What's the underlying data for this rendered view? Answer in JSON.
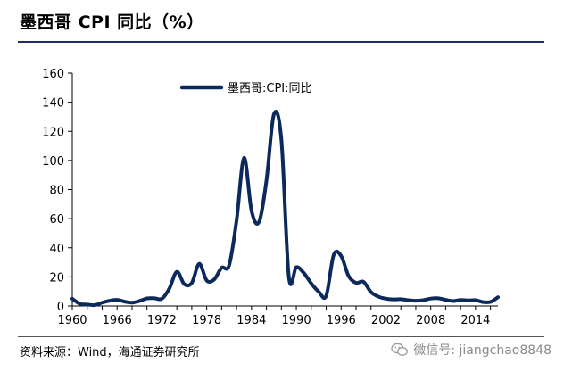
{
  "header": {
    "title": "墨西哥 CPI 同比（%）"
  },
  "footer": {
    "source": "资料来源：Wind，海通证券研究所",
    "watermark": "微信号: jiangchao8848",
    "watermark_icon": "wechat-icon"
  },
  "colors": {
    "line": "#0b2a5b",
    "rule": "#1f2f5a",
    "text": "#000000"
  },
  "chart_data": {
    "type": "line",
    "title": "墨西哥 CPI 同比（%）",
    "xlabel": "",
    "ylabel": "",
    "ylim": [
      0,
      160
    ],
    "xlim": [
      1960,
      2017
    ],
    "yticks": [
      "0",
      "20",
      "40",
      "60",
      "80",
      "100",
      "120",
      "140",
      "160"
    ],
    "xticks": [
      "1960",
      "1966",
      "1972",
      "1978",
      "1984",
      "1990",
      "1996",
      "2002",
      "2008",
      "2014"
    ],
    "grid": false,
    "legend_position": "top-left",
    "series": [
      {
        "name": "墨西哥:CPI:同比",
        "x": [
          1960,
          1961,
          1962,
          1963,
          1964,
          1965,
          1966,
          1967,
          1968,
          1969,
          1970,
          1971,
          1972,
          1973,
          1974,
          1975,
          1976,
          1977,
          1978,
          1979,
          1980,
          1981,
          1982,
          1983,
          1984,
          1985,
          1986,
          1987,
          1988,
          1989,
          1990,
          1991,
          1992,
          1993,
          1994,
          1995,
          1996,
          1997,
          1998,
          1999,
          2000,
          2001,
          2002,
          2003,
          2004,
          2005,
          2006,
          2007,
          2008,
          2009,
          2010,
          2011,
          2012,
          2013,
          2014,
          2015,
          2016,
          2017
        ],
        "y": [
          5,
          1.5,
          1,
          0.6,
          2.3,
          3.6,
          4.2,
          3,
          2.3,
          3.4,
          5.2,
          5.3,
          5,
          12,
          23.5,
          15,
          15.8,
          29,
          17.5,
          18.2,
          26.3,
          27.9,
          58.9,
          101.8,
          65.5,
          57.7,
          86.2,
          131.8,
          114.2,
          20,
          26.7,
          22.7,
          15.5,
          9.8,
          7,
          35,
          34.4,
          20.6,
          15.9,
          16.6,
          9.5,
          6.4,
          5,
          4.5,
          4.7,
          4,
          3.6,
          4,
          5.1,
          5.3,
          4.2,
          3.4,
          4.1,
          3.8,
          4,
          2.7,
          2.8,
          6
        ]
      }
    ]
  }
}
